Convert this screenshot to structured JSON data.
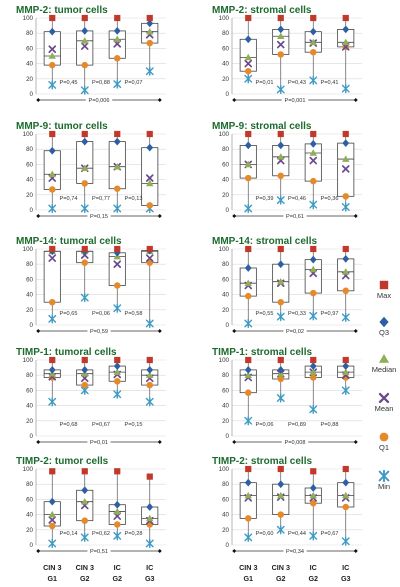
{
  "chart_data": {
    "type": "box",
    "categories": [
      {
        "line1": "CIN 3",
        "line2": "G1"
      },
      {
        "line1": "CIN 3",
        "line2": "G2"
      },
      {
        "line1": "IC",
        "line2": "G2"
      },
      {
        "line1": "IC",
        "line2": "G3"
      }
    ],
    "ylim": [
      0,
      100
    ],
    "yticks": [
      0,
      20,
      40,
      60,
      80,
      100
    ],
    "legend": [
      {
        "key": "max",
        "label": "Max",
        "marker": "square",
        "color": "#c0392b"
      },
      {
        "key": "q3",
        "label": "Q3",
        "marker": "diamond",
        "color": "#2e5fa3"
      },
      {
        "key": "median",
        "label": "Median",
        "marker": "triangle",
        "color": "#8fae55"
      },
      {
        "key": "mean",
        "label": "Mean",
        "marker": "x",
        "color": "#6a4a8c"
      },
      {
        "key": "q1",
        "label": "Q1",
        "marker": "circle",
        "color": "#e58a2a"
      },
      {
        "key": "min",
        "label": "Min",
        "marker": "star",
        "color": "#3d9ac2"
      }
    ],
    "panels": [
      {
        "title": "MMP-2: tumor cells",
        "pairwise": [
          "P=0,45",
          "P=0,88",
          "P=0,07"
        ],
        "overall": "P=0,006",
        "boxes": [
          {
            "max": 100,
            "q3": 82,
            "median": 50,
            "mean": 59,
            "q1": 38,
            "min": 12
          },
          {
            "max": 100,
            "q3": 83,
            "median": 70,
            "mean": 63,
            "q1": 38,
            "min": 5
          },
          {
            "max": 100,
            "q3": 83,
            "median": 72,
            "mean": 66,
            "q1": 47,
            "min": 13
          },
          {
            "max": 100,
            "q3": 93,
            "median": 82,
            "mean": 78,
            "q1": 67,
            "min": 30
          }
        ]
      },
      {
        "title": "MMP-2: stromal cells",
        "pairwise": [
          "P=0,01",
          "P=0,43",
          "P=0,41"
        ],
        "overall": "P=0,001",
        "boxes": [
          {
            "max": 100,
            "q3": 72,
            "median": 48,
            "mean": 40,
            "q1": 30,
            "min": 20
          },
          {
            "max": 100,
            "q3": 85,
            "median": 76,
            "mean": 65,
            "q1": 52,
            "min": 6
          },
          {
            "max": 100,
            "q3": 82,
            "median": 68,
            "mean": 67,
            "q1": 55,
            "min": 18
          },
          {
            "max": 100,
            "q3": 85,
            "median": 68,
            "mean": 62,
            "q1": 62,
            "min": 7
          }
        ]
      },
      {
        "title": "MMP-9: tumor cells",
        "pairwise": [
          "P=0,74",
          "P=0,77",
          "P=0,13"
        ],
        "overall": "P=0,15",
        "boxes": [
          {
            "max": 100,
            "q3": 78,
            "median": 47,
            "mean": 42,
            "q1": 27,
            "min": 2
          },
          {
            "max": 100,
            "q3": 90,
            "median": 55,
            "mean": 55,
            "q1": 35,
            "min": 2
          },
          {
            "max": 100,
            "q3": 90,
            "median": 57,
            "mean": 57,
            "q1": 28,
            "min": 2
          },
          {
            "max": 100,
            "q3": 82,
            "median": 35,
            "mean": 42,
            "q1": 6,
            "min": 2
          }
        ]
      },
      {
        "title": "MMP-9: stromal cells",
        "pairwise": [
          "P=0,39",
          "P=0,46",
          "P=0,36"
        ],
        "overall": "P=0,61",
        "boxes": [
          {
            "max": 100,
            "q3": 85,
            "median": 60,
            "mean": 60,
            "q1": 42,
            "min": 2
          },
          {
            "max": 100,
            "q3": 85,
            "median": 70,
            "mean": 65,
            "q1": 45,
            "min": 13
          },
          {
            "max": 100,
            "q3": 87,
            "median": 75,
            "mean": 65,
            "q1": 38,
            "min": 7
          },
          {
            "max": 100,
            "q3": 88,
            "median": 67,
            "mean": 54,
            "q1": 18,
            "min": 4
          }
        ]
      },
      {
        "title": "MMP-14: tumoral cells",
        "pairwise": [
          "P=0,65",
          "P=0,06",
          "P=0,58"
        ],
        "overall": "P=0,59",
        "boxes": [
          {
            "max": 100,
            "q3": 97,
            "median": 97,
            "mean": 88,
            "q1": 30,
            "min": 8
          },
          {
            "max": 100,
            "q3": 97,
            "median": 97,
            "mean": 92,
            "q1": 82,
            "min": 36
          },
          {
            "max": 100,
            "q3": 95,
            "median": 90,
            "mean": 80,
            "q1": 52,
            "min": 22
          },
          {
            "max": 100,
            "q3": 98,
            "median": 97,
            "mean": 88,
            "q1": 82,
            "min": 2
          }
        ]
      },
      {
        "title": "MMP-14: stromal cells",
        "pairwise": [
          "P=0,55",
          "P=0,33",
          "P=0,97"
        ],
        "overall": "P=0,02",
        "boxes": [
          {
            "max": 100,
            "q3": 75,
            "median": 55,
            "mean": 52,
            "q1": 38,
            "min": 2
          },
          {
            "max": 100,
            "q3": 80,
            "median": 57,
            "mean": 55,
            "q1": 30,
            "min": 11
          },
          {
            "max": 100,
            "q3": 86,
            "median": 73,
            "mean": 68,
            "q1": 42,
            "min": 12
          },
          {
            "max": 100,
            "q3": 87,
            "median": 70,
            "mean": 65,
            "q1": 45,
            "min": 10
          }
        ]
      },
      {
        "title": "TIMP-1: tumoral cells",
        "pairwise": [
          "P=0,68",
          "P=0,67",
          "P=0,15"
        ],
        "overall": "P=0,01",
        "boxes": [
          {
            "max": 100,
            "q3": 87,
            "median": 82,
            "mean": 78,
            "q1": 77,
            "min": 45
          },
          {
            "max": 100,
            "q3": 87,
            "median": 82,
            "mean": 76,
            "q1": 67,
            "min": 60
          },
          {
            "max": 100,
            "q3": 92,
            "median": 84,
            "mean": 81,
            "q1": 72,
            "min": 55
          },
          {
            "max": 100,
            "q3": 87,
            "median": 80,
            "mean": 76,
            "q1": 67,
            "min": 45
          }
        ]
      },
      {
        "title": "TIMP-1: stromal cells",
        "pairwise": [
          "P=0,06",
          "P=0,89",
          "P=0,88"
        ],
        "overall": "P=0,008",
        "boxes": [
          {
            "max": 100,
            "q3": 87,
            "median": 80,
            "mean": 77,
            "q1": 57,
            "min": 20
          },
          {
            "max": 100,
            "q3": 87,
            "median": 82,
            "mean": 82,
            "q1": 75,
            "min": 50
          },
          {
            "max": 100,
            "q3": 92,
            "median": 84,
            "mean": 84,
            "q1": 77,
            "min": 35
          },
          {
            "max": 100,
            "q3": 92,
            "median": 84,
            "mean": 80,
            "q1": 77,
            "min": 60
          }
        ]
      },
      {
        "title": "TIMP-2: tumor cells",
        "pairwise": [
          "P=0,14",
          "P=0,62",
          "P=0,28"
        ],
        "overall": "P=0,51",
        "boxes": [
          {
            "max": 97,
            "q3": 57,
            "median": 40,
            "mean": 33,
            "q1": 25,
            "min": 2
          },
          {
            "max": 97,
            "q3": 72,
            "median": 57,
            "mean": 52,
            "q1": 32,
            "min": 10
          },
          {
            "max": 97,
            "q3": 53,
            "median": 44,
            "mean": 38,
            "q1": 27,
            "min": 12
          },
          {
            "max": 90,
            "q3": 50,
            "median": 35,
            "mean": 32,
            "q1": 27,
            "min": 2
          }
        ]
      },
      {
        "title": "TIMP-2: stromal cells",
        "pairwise": [
          "P=0,60",
          "P=0,44",
          "P=0,67"
        ],
        "overall": "P=0,34",
        "boxes": [
          {
            "max": 100,
            "q3": 82,
            "median": 65,
            "mean": 62,
            "q1": 35,
            "min": 10
          },
          {
            "max": 100,
            "q3": 80,
            "median": 65,
            "mean": 63,
            "q1": 40,
            "min": 20
          },
          {
            "max": 97,
            "q3": 75,
            "median": 65,
            "mean": 62,
            "q1": 55,
            "min": 12
          },
          {
            "max": 100,
            "q3": 82,
            "median": 65,
            "mean": 62,
            "q1": 50,
            "min": 5
          }
        ]
      }
    ]
  }
}
